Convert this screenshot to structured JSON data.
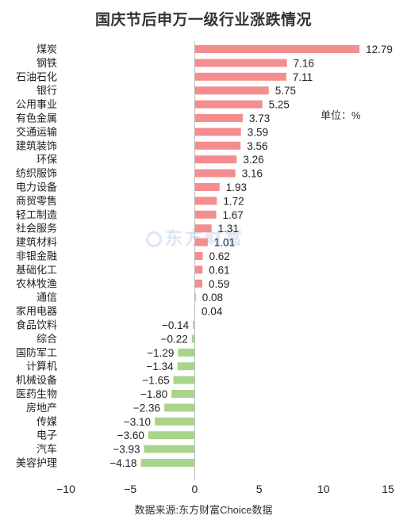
{
  "chart_data": {
    "type": "bar",
    "orientation": "horizontal",
    "title": "国庆节后申万一级行业涨跌情况",
    "unit_note": "单位：%",
    "source": "数据来源:东方财富Choice数据",
    "watermark": "东方财富",
    "categories": [
      "煤炭",
      "钢铁",
      "石油石化",
      "银行",
      "公用事业",
      "有色金属",
      "交通运输",
      "建筑装饰",
      "环保",
      "纺织服饰",
      "电力设备",
      "商贸零售",
      "轻工制造",
      "社会服务",
      "建筑材料",
      "非银金融",
      "基础化工",
      "农林牧渔",
      "通信",
      "家用电器",
      "食品饮料",
      "综合",
      "国防军工",
      "计算机",
      "机械设备",
      "医药生物",
      "房地产",
      "传媒",
      "电子",
      "汽车",
      "美容护理"
    ],
    "values": [
      12.79,
      7.16,
      7.11,
      5.75,
      5.25,
      3.73,
      3.59,
      3.56,
      3.26,
      3.16,
      1.93,
      1.72,
      1.67,
      1.31,
      1.01,
      0.62,
      0.61,
      0.59,
      0.08,
      0.04,
      -0.14,
      -0.22,
      -1.29,
      -1.34,
      -1.65,
      -1.8,
      -2.36,
      -3.1,
      -3.6,
      -3.93,
      -4.18
    ],
    "value_labels": [
      "12.79",
      "7.16",
      "7.11",
      "5.75",
      "5.25",
      "3.73",
      "3.59",
      "3.56",
      "3.26",
      "3.16",
      "1.93",
      "1.72",
      "1.67",
      "1.31",
      "1.01",
      "0.62",
      "0.61",
      "0.59",
      "0.08",
      "0.04",
      "−0.14",
      "−0.22",
      "−1.29",
      "−1.34",
      "−1.65",
      "−1.80",
      "−2.36",
      "−3.10",
      "−3.60",
      "−3.93",
      "−4.18"
    ],
    "xlim": [
      -10,
      15
    ],
    "xticks": [
      -10,
      -5,
      0,
      5,
      10,
      15
    ],
    "xtick_labels": [
      "−10",
      "−5",
      "0",
      "5",
      "10",
      "15"
    ],
    "grid": false,
    "colors": {
      "positive": "#f48d8d",
      "negative": "#a9d58a",
      "axis": "#999999"
    }
  }
}
